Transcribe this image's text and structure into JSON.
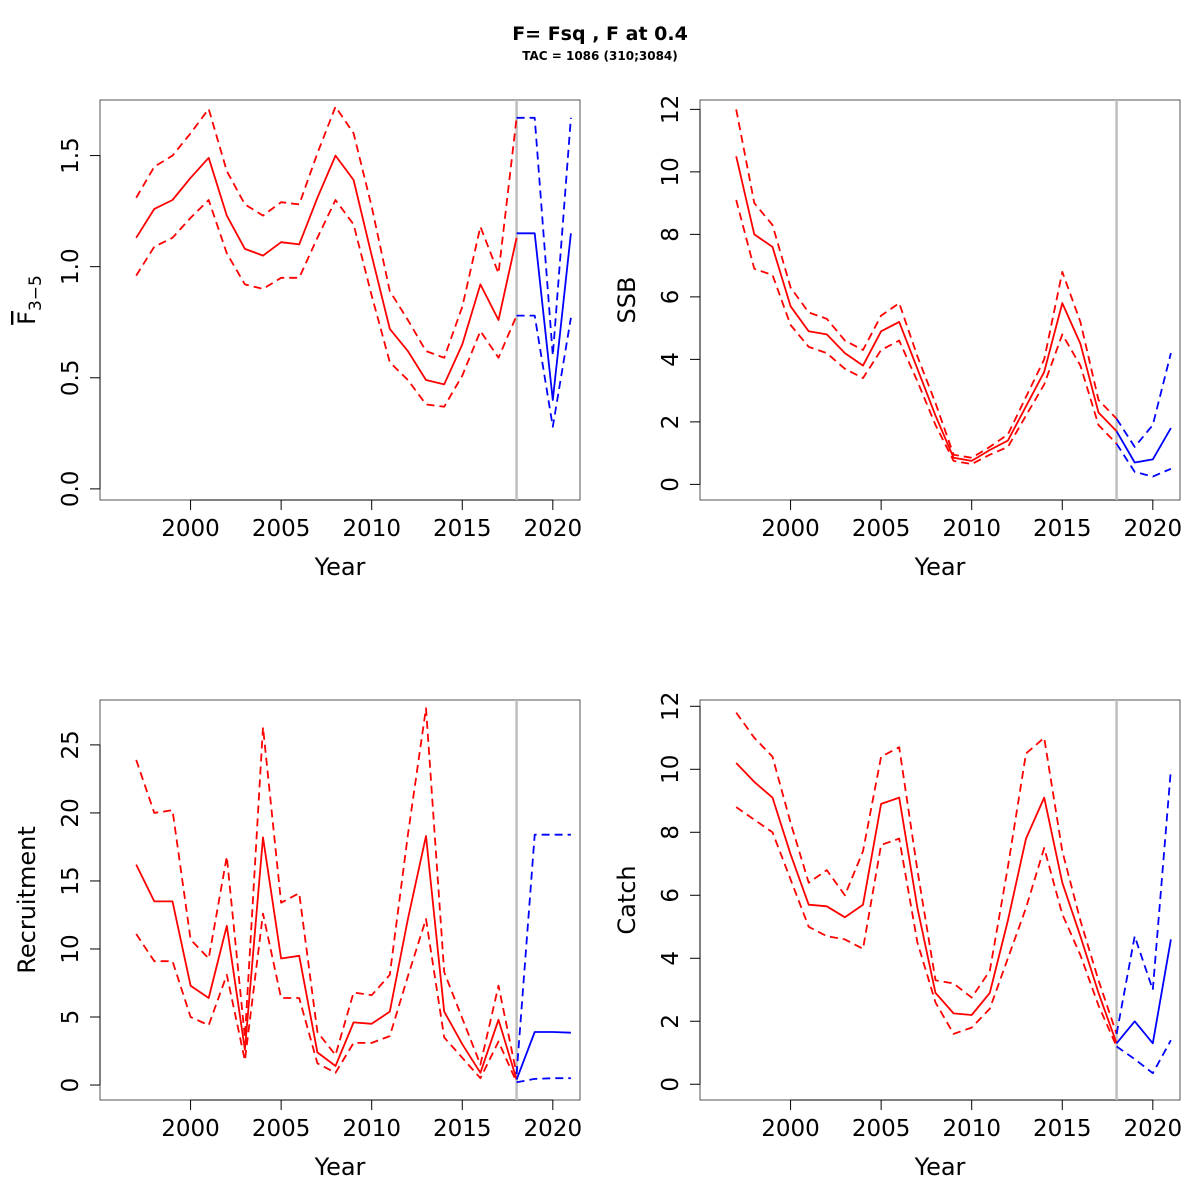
{
  "title": "F= Fsq , F at 0.4",
  "subtitle": "TAC = 1086 (310;3084)",
  "colors": {
    "historical": "#ff0000",
    "projection": "#0000ff",
    "divider": "#bebebe",
    "axis": "#000000"
  },
  "chart_data": [
    {
      "type": "line",
      "panel": "top-left",
      "ylabel": "F",
      "ylabel_subscript": "3−5",
      "xlabel": "Year",
      "xlim": [
        1995,
        2021.5
      ],
      "ylim": [
        -0.05,
        1.75
      ],
      "x_ticks": [
        2000,
        2005,
        2010,
        2015,
        2020
      ],
      "y_ticks": [
        0.0,
        0.5,
        1.0,
        1.5
      ],
      "y_tick_labels": [
        "0.0",
        "0.5",
        "1.0",
        "1.5"
      ],
      "divider_year": 2018,
      "series": [
        {
          "role": "median",
          "style": "solid",
          "color": "red",
          "x": [
            1997,
            1998,
            1999,
            2000,
            2001,
            2002,
            2003,
            2004,
            2005,
            2006,
            2007,
            2008,
            2009,
            2010,
            2011,
            2012,
            2013,
            2014,
            2015,
            2016,
            2017,
            2018
          ],
          "values": [
            1.13,
            1.26,
            1.3,
            1.4,
            1.49,
            1.23,
            1.08,
            1.05,
            1.11,
            1.1,
            1.31,
            1.5,
            1.39,
            1.05,
            0.72,
            0.62,
            0.49,
            0.47,
            0.65,
            0.92,
            0.76,
            1.13
          ]
        },
        {
          "role": "upper",
          "style": "dashed",
          "color": "red",
          "x": [
            1997,
            1998,
            1999,
            2000,
            2001,
            2002,
            2003,
            2004,
            2005,
            2006,
            2007,
            2008,
            2009,
            2010,
            2011,
            2012,
            2013,
            2014,
            2015,
            2016,
            2017,
            2018
          ],
          "values": [
            1.31,
            1.45,
            1.5,
            1.6,
            1.71,
            1.43,
            1.28,
            1.23,
            1.29,
            1.28,
            1.51,
            1.72,
            1.6,
            1.27,
            0.89,
            0.76,
            0.62,
            0.59,
            0.82,
            1.18,
            0.97,
            1.67
          ]
        },
        {
          "role": "lower",
          "style": "dashed",
          "color": "red",
          "x": [
            1997,
            1998,
            1999,
            2000,
            2001,
            2002,
            2003,
            2004,
            2005,
            2006,
            2007,
            2008,
            2009,
            2010,
            2011,
            2012,
            2013,
            2014,
            2015,
            2016,
            2017,
            2018
          ],
          "values": [
            0.96,
            1.09,
            1.13,
            1.22,
            1.3,
            1.06,
            0.92,
            0.9,
            0.95,
            0.95,
            1.13,
            1.3,
            1.19,
            0.87,
            0.57,
            0.49,
            0.38,
            0.37,
            0.51,
            0.71,
            0.59,
            0.78
          ]
        },
        {
          "role": "median",
          "style": "solid",
          "color": "blue",
          "x": [
            2018,
            2019,
            2020,
            2021
          ],
          "values": [
            1.15,
            1.15,
            0.4,
            1.15
          ]
        },
        {
          "role": "upper",
          "style": "dashed",
          "color": "blue",
          "x": [
            2018,
            2019,
            2020,
            2021
          ],
          "values": [
            1.67,
            1.67,
            0.6,
            1.67
          ]
        },
        {
          "role": "lower",
          "style": "dashed",
          "color": "blue",
          "x": [
            2018,
            2019,
            2020,
            2021
          ],
          "values": [
            0.78,
            0.78,
            0.28,
            0.77
          ]
        }
      ]
    },
    {
      "type": "line",
      "panel": "top-right",
      "ylabel": "SSB",
      "xlabel": "Year",
      "xlim": [
        1995,
        2021.5
      ],
      "ylim": [
        -0.5,
        12.3
      ],
      "x_ticks": [
        2000,
        2005,
        2010,
        2015,
        2020
      ],
      "y_ticks": [
        0,
        2,
        4,
        6,
        8,
        10,
        12
      ],
      "y_tick_labels": [
        "0",
        "2",
        "4",
        "6",
        "8",
        "10",
        "12"
      ],
      "divider_year": 2018,
      "series": [
        {
          "role": "median",
          "style": "solid",
          "color": "red",
          "x": [
            1997,
            1998,
            1999,
            2000,
            2001,
            2002,
            2003,
            2004,
            2005,
            2006,
            2007,
            2008,
            2009,
            2010,
            2011,
            2012,
            2013,
            2014,
            2015,
            2016,
            2017,
            2018
          ],
          "values": [
            10.5,
            8.0,
            7.6,
            5.7,
            4.9,
            4.8,
            4.2,
            3.8,
            4.9,
            5.2,
            3.7,
            2.2,
            0.85,
            0.75,
            1.1,
            1.4,
            2.5,
            3.6,
            5.8,
            4.5,
            2.3,
            1.7
          ]
        },
        {
          "role": "upper",
          "style": "dashed",
          "color": "red",
          "x": [
            1997,
            1998,
            1999,
            2000,
            2001,
            2002,
            2003,
            2004,
            2005,
            2006,
            2007,
            2008,
            2009,
            2010,
            2011,
            2012,
            2013,
            2014,
            2015,
            2016,
            2017,
            2018
          ],
          "values": [
            12.0,
            9.0,
            8.3,
            6.3,
            5.5,
            5.3,
            4.6,
            4.3,
            5.4,
            5.8,
            4.1,
            2.6,
            0.95,
            0.85,
            1.2,
            1.6,
            2.8,
            4.0,
            6.8,
            5.2,
            2.7,
            2.1
          ]
        },
        {
          "role": "lower",
          "style": "dashed",
          "color": "red",
          "x": [
            1997,
            1998,
            1999,
            2000,
            2001,
            2002,
            2003,
            2004,
            2005,
            2006,
            2007,
            2008,
            2009,
            2010,
            2011,
            2012,
            2013,
            2014,
            2015,
            2016,
            2017,
            2018
          ],
          "values": [
            9.1,
            6.9,
            6.7,
            5.1,
            4.4,
            4.2,
            3.7,
            3.4,
            4.3,
            4.6,
            3.3,
            1.9,
            0.75,
            0.65,
            0.95,
            1.2,
            2.2,
            3.2,
            4.8,
            3.8,
            1.9,
            1.3
          ]
        },
        {
          "role": "median",
          "style": "solid",
          "color": "blue",
          "x": [
            2018,
            2019,
            2020,
            2021
          ],
          "values": [
            1.7,
            0.7,
            0.8,
            1.8
          ]
        },
        {
          "role": "upper",
          "style": "dashed",
          "color": "blue",
          "x": [
            2018,
            2019,
            2020,
            2021
          ],
          "values": [
            2.1,
            1.2,
            1.9,
            4.2
          ]
        },
        {
          "role": "lower",
          "style": "dashed",
          "color": "blue",
          "x": [
            2018,
            2019,
            2020,
            2021
          ],
          "values": [
            1.3,
            0.4,
            0.25,
            0.5
          ]
        }
      ]
    },
    {
      "type": "line",
      "panel": "bottom-left",
      "ylabel": "Recruitment",
      "xlabel": "Year",
      "xlim": [
        1995,
        2021.5
      ],
      "ylim": [
        -1.1,
        28.3
      ],
      "x_ticks": [
        2000,
        2005,
        2010,
        2015,
        2020
      ],
      "y_ticks": [
        0,
        5,
        10,
        15,
        20,
        25
      ],
      "y_tick_labels": [
        "0",
        "5",
        "10",
        "15",
        "20",
        "25"
      ],
      "divider_year": 2018,
      "series": [
        {
          "role": "median",
          "style": "solid",
          "color": "red",
          "x": [
            1997,
            1998,
            1999,
            2000,
            2001,
            2002,
            2003,
            2004,
            2005,
            2006,
            2007,
            2008,
            2009,
            2010,
            2011,
            2012,
            2013,
            2014,
            2015,
            2016,
            2017,
            2018
          ],
          "values": [
            16.2,
            13.5,
            13.5,
            7.3,
            6.4,
            11.7,
            2.6,
            18.2,
            9.3,
            9.5,
            2.4,
            1.4,
            4.6,
            4.5,
            5.4,
            12.2,
            18.3,
            5.4,
            3.0,
            0.9,
            4.8,
            0.4
          ]
        },
        {
          "role": "upper",
          "style": "dashed",
          "color": "red",
          "x": [
            1997,
            1998,
            1999,
            2000,
            2001,
            2002,
            2003,
            2004,
            2005,
            2006,
            2007,
            2008,
            2009,
            2010,
            2011,
            2012,
            2013,
            2014,
            2015,
            2016,
            2017,
            2018
          ],
          "values": [
            23.9,
            20.0,
            20.2,
            10.7,
            9.3,
            16.8,
            3.5,
            26.3,
            13.4,
            14.1,
            3.9,
            2.2,
            6.8,
            6.6,
            8.1,
            18.4,
            27.7,
            8.3,
            4.9,
            1.5,
            7.3,
            0.8
          ]
        },
        {
          "role": "lower",
          "style": "dashed",
          "color": "red",
          "x": [
            1997,
            1998,
            1999,
            2000,
            2001,
            2002,
            2003,
            2004,
            2005,
            2006,
            2007,
            2008,
            2009,
            2010,
            2011,
            2012,
            2013,
            2014,
            2015,
            2016,
            2017,
            2018
          ],
          "values": [
            11.1,
            9.1,
            9.1,
            5.0,
            4.4,
            8.1,
            1.8,
            12.6,
            6.4,
            6.4,
            1.6,
            0.9,
            3.1,
            3.1,
            3.6,
            8.0,
            12.2,
            3.5,
            2.0,
            0.5,
            3.2,
            0.2
          ]
        },
        {
          "role": "median",
          "style": "solid",
          "color": "blue",
          "x": [
            2018,
            2019,
            2020,
            2021
          ],
          "values": [
            0.4,
            3.9,
            3.9,
            3.85
          ]
        },
        {
          "role": "upper",
          "style": "dashed",
          "color": "blue",
          "x": [
            2018,
            2019,
            2020,
            2021
          ],
          "values": [
            0.8,
            18.4,
            18.4,
            18.4
          ]
        },
        {
          "role": "lower",
          "style": "dashed",
          "color": "blue",
          "x": [
            2018,
            2019,
            2020,
            2021
          ],
          "values": [
            0.2,
            0.45,
            0.5,
            0.5
          ]
        }
      ]
    },
    {
      "type": "line",
      "panel": "bottom-right",
      "ylabel": "Catch",
      "xlabel": "Year",
      "xlim": [
        1995,
        2021.5
      ],
      "ylim": [
        -0.5,
        12.2
      ],
      "x_ticks": [
        2000,
        2005,
        2010,
        2015,
        2020
      ],
      "y_ticks": [
        0,
        2,
        4,
        6,
        8,
        10,
        12
      ],
      "y_tick_labels": [
        "0",
        "2",
        "4",
        "6",
        "8",
        "10",
        "12"
      ],
      "divider_year": 2018,
      "series": [
        {
          "role": "median",
          "style": "solid",
          "color": "red",
          "x": [
            1997,
            1998,
            1999,
            2000,
            2001,
            2002,
            2003,
            2004,
            2005,
            2006,
            2007,
            2008,
            2009,
            2010,
            2011,
            2012,
            2013,
            2014,
            2015,
            2016,
            2017,
            2018
          ],
          "values": [
            10.2,
            9.6,
            9.1,
            7.3,
            5.7,
            5.65,
            5.3,
            5.7,
            8.9,
            9.1,
            5.6,
            2.9,
            2.25,
            2.2,
            2.9,
            5.2,
            7.8,
            9.1,
            6.4,
            4.7,
            2.9,
            1.3
          ]
        },
        {
          "role": "upper",
          "style": "dashed",
          "color": "red",
          "x": [
            1997,
            1998,
            1999,
            2000,
            2001,
            2002,
            2003,
            2004,
            2005,
            2006,
            2007,
            2008,
            2009,
            2010,
            2011,
            2012,
            2013,
            2014,
            2015,
            2016,
            2017,
            2018
          ],
          "values": [
            11.8,
            11.0,
            10.4,
            8.3,
            6.4,
            6.8,
            6.0,
            7.4,
            10.4,
            10.7,
            6.8,
            3.3,
            3.2,
            2.75,
            3.6,
            6.9,
            10.5,
            11.0,
            7.4,
            5.2,
            3.3,
            1.6
          ]
        },
        {
          "role": "lower",
          "style": "dashed",
          "color": "red",
          "x": [
            1997,
            1998,
            1999,
            2000,
            2001,
            2002,
            2003,
            2004,
            2005,
            2006,
            2007,
            2008,
            2009,
            2010,
            2011,
            2012,
            2013,
            2014,
            2015,
            2016,
            2017,
            2018
          ],
          "values": [
            8.8,
            8.4,
            8.0,
            6.5,
            5.0,
            4.7,
            4.6,
            4.3,
            7.6,
            7.8,
            4.5,
            2.6,
            1.6,
            1.8,
            2.4,
            4.0,
            5.6,
            7.5,
            5.4,
            4.1,
            2.5,
            1.2
          ]
        },
        {
          "role": "median",
          "style": "solid",
          "color": "blue",
          "x": [
            2018,
            2019,
            2020,
            2021
          ],
          "values": [
            1.3,
            2.0,
            1.3,
            4.6
          ]
        },
        {
          "role": "upper",
          "style": "dashed",
          "color": "blue",
          "x": [
            2018,
            2019,
            2020,
            2021
          ],
          "values": [
            1.6,
            4.7,
            3.0,
            10.0
          ]
        },
        {
          "role": "lower",
          "style": "dashed",
          "color": "blue",
          "x": [
            2018,
            2019,
            2020,
            2021
          ],
          "values": [
            1.2,
            0.8,
            0.35,
            1.4
          ]
        }
      ]
    }
  ]
}
